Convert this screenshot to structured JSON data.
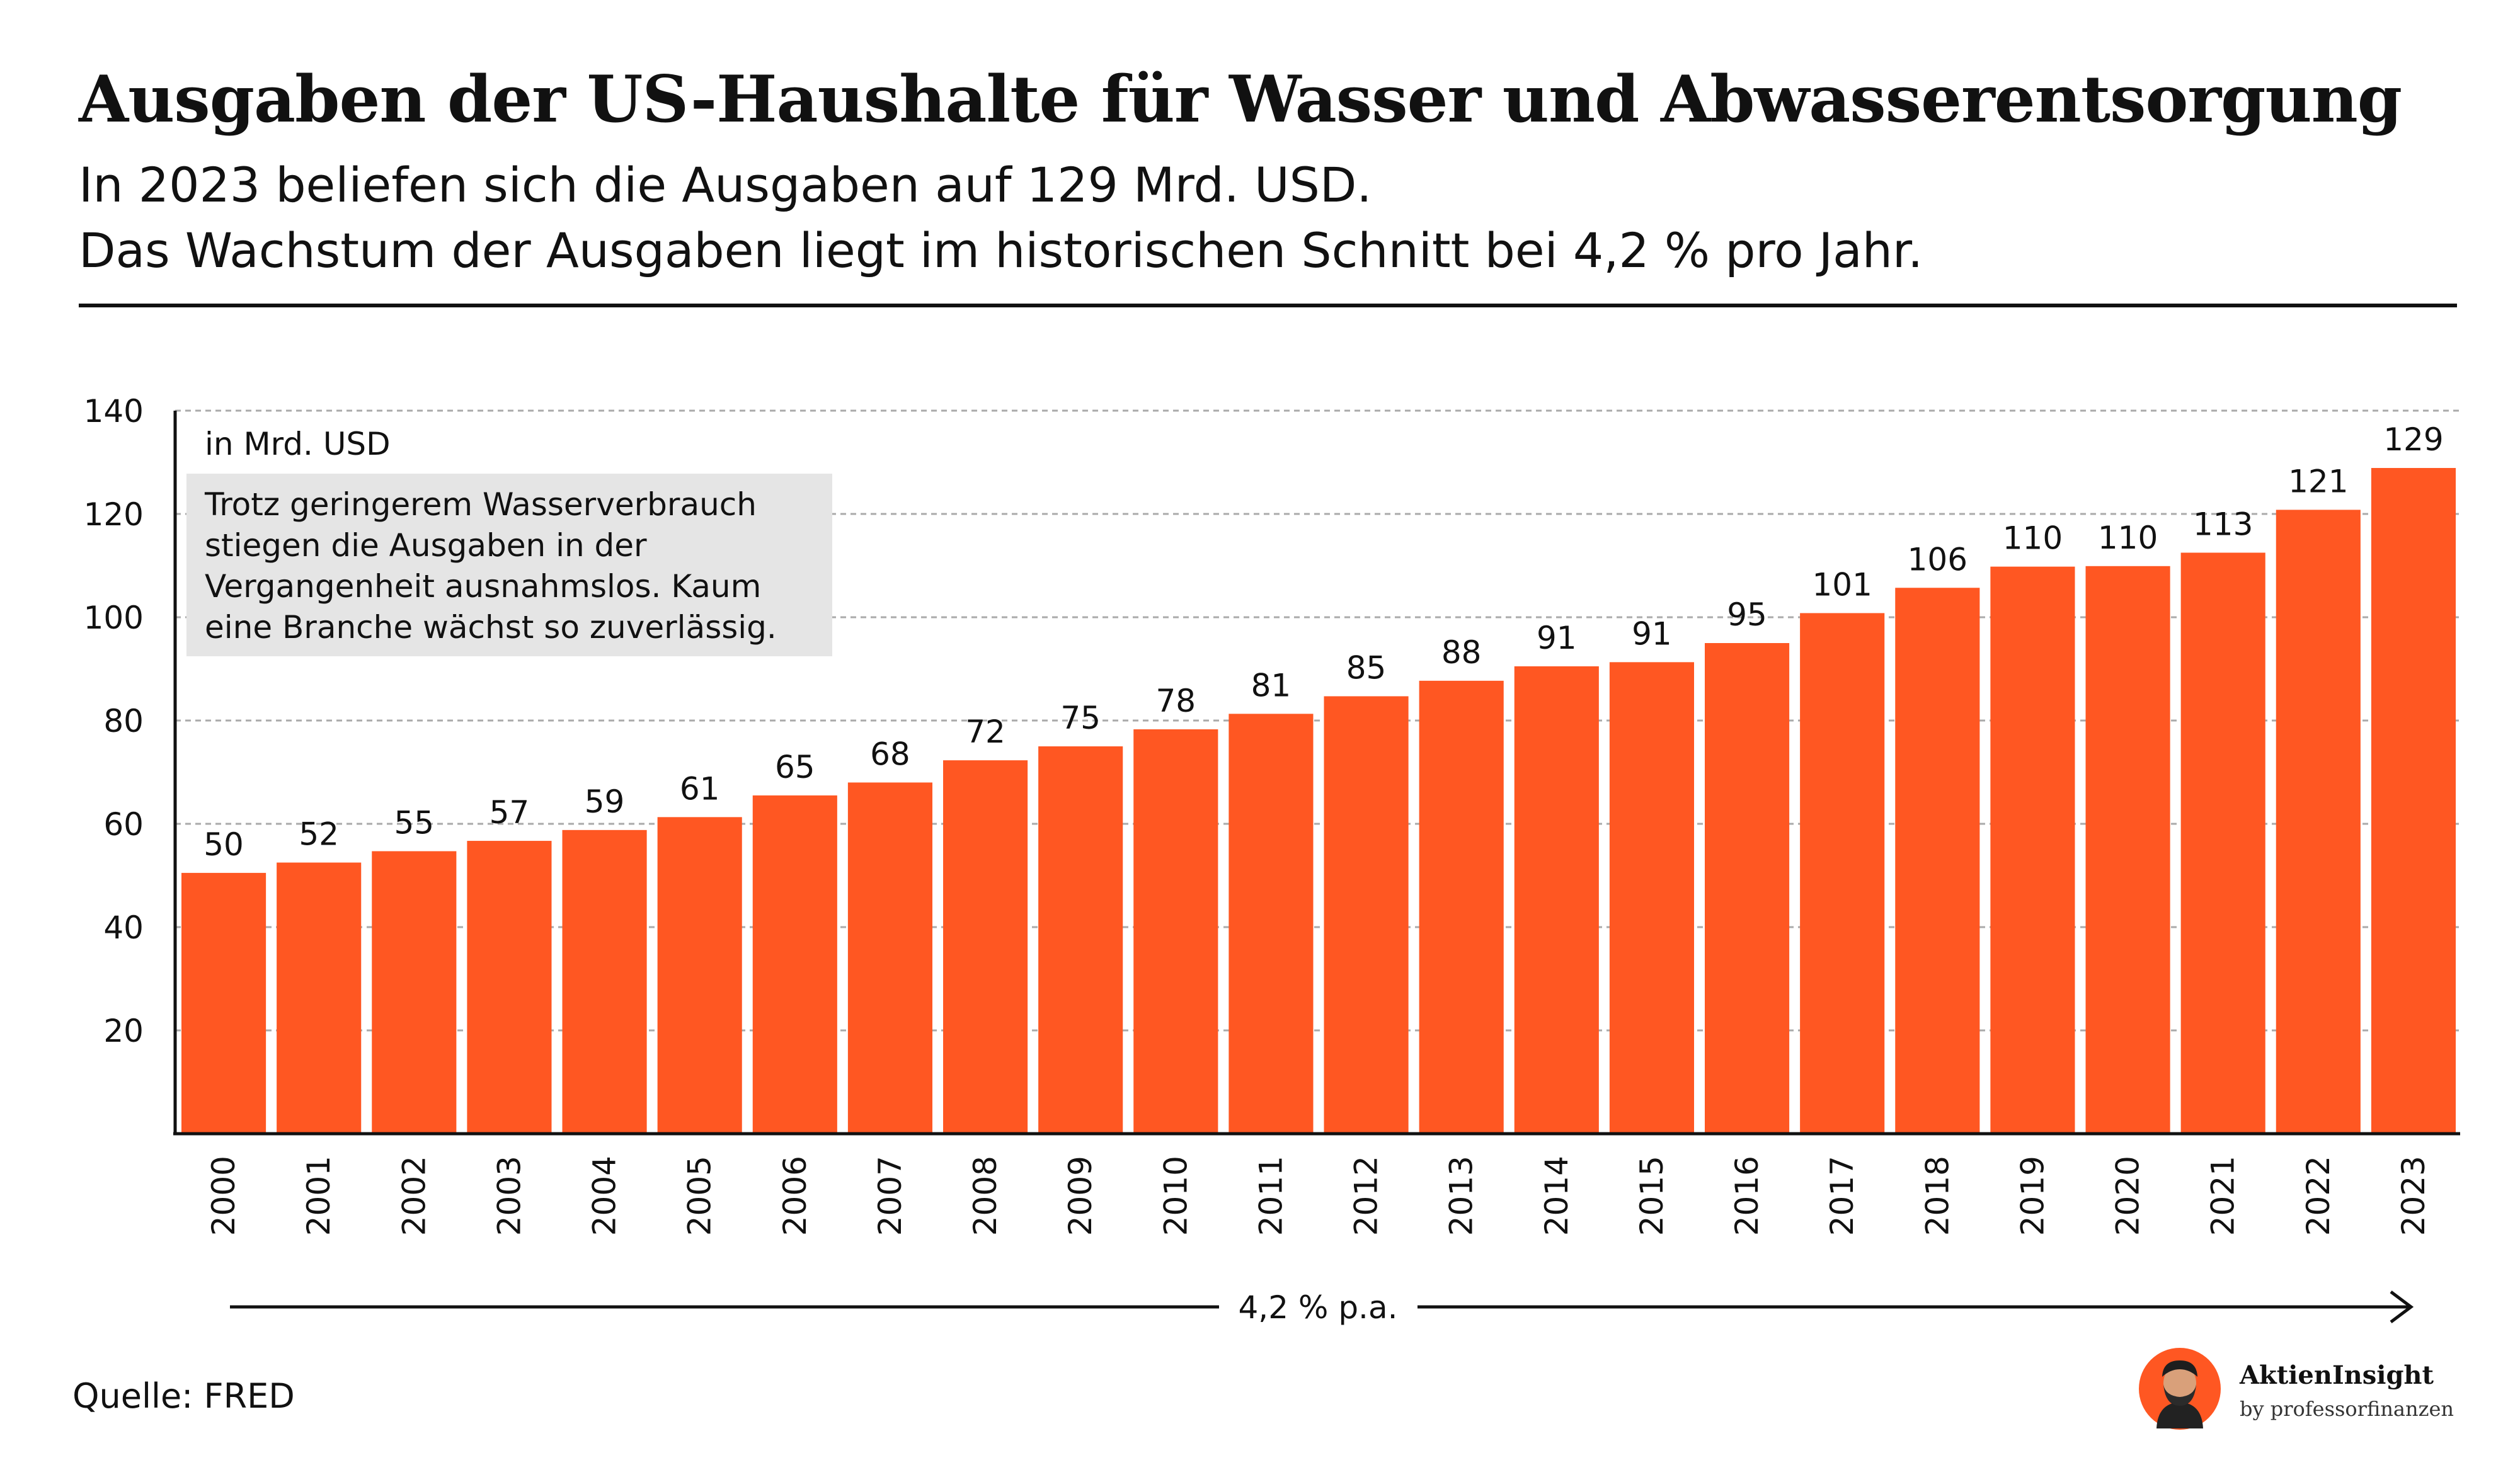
{
  "header": {
    "title": "Ausgaben der US-Haushalte für Wasser und Abwasserentsorgung",
    "subtitle_line1": "In 2023 beliefen sich die Ausgaben auf 129 Mrd. USD.",
    "subtitle_line2": "Das Wachstum der Ausgaben liegt im historischen Schnitt bei 4,2 % pro Jahr."
  },
  "chart_data": {
    "type": "bar",
    "categories": [
      "2000",
      "2001",
      "2002",
      "2003",
      "2004",
      "2005",
      "2006",
      "2007",
      "2008",
      "2009",
      "2010",
      "2011",
      "2012",
      "2013",
      "2014",
      "2015",
      "2016",
      "2017",
      "2018",
      "2019",
      "2020",
      "2021",
      "2022",
      "2023"
    ],
    "values": [
      50,
      52,
      55,
      57,
      59,
      61,
      65,
      68,
      72,
      75,
      78,
      81,
      85,
      88,
      91,
      91,
      95,
      101,
      106,
      110,
      110,
      113,
      121,
      129
    ],
    "series": [
      {
        "values": [
          50.5,
          52.5,
          54.7,
          56.7,
          58.8,
          61.3,
          65.5,
          68.0,
          72.3,
          75.0,
          78.3,
          81.3,
          84.7,
          87.7,
          90.5,
          91.3,
          95.0,
          100.8,
          105.7,
          109.8,
          109.9,
          112.5,
          120.8,
          128.9
        ]
      }
    ],
    "unit_label": "in Mrd. USD",
    "ylim": [
      0,
      140
    ],
    "yticks": [
      20,
      40,
      60,
      80,
      100,
      120,
      140
    ],
    "grid": true,
    "annotation": "Trotz geringerem Wasserverbrauch stiegen die Ausgaben in der Vergangenheit ausnahmslos. Kaum eine Branche wächst so zuverlässig.",
    "growth_label": "4,2 % p.a.",
    "bar_color": "#ff5722"
  },
  "footer": {
    "source": "Quelle: FRED",
    "brand_name": "AktienInsight",
    "brand_by": "by professorfinanzen"
  },
  "colors": {
    "accent": "#ff5722",
    "text": "#111111",
    "annotation_bg": "#e5e5e5",
    "grid": "#aaaaaa"
  }
}
